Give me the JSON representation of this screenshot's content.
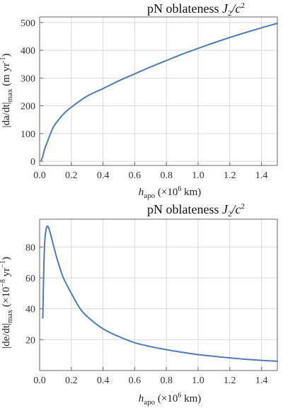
{
  "chart_data": [
    {
      "type": "line",
      "title": "pN oblateness J₂/c²",
      "title_parts": {
        "main": "pN oblateness",
        "J": "J",
        "J_sub": "2",
        "slash": "/",
        "c": "c",
        "c_sup": "2"
      },
      "xlabel": "h_apo (×10^6 km)",
      "xlabel_parts": {
        "sym": "h",
        "sub": "apo",
        "unit_open": "(×10",
        "unit_sup": "6",
        "unit_close": "km)"
      },
      "ylabel": "|da/dt|_max (m yr^-1)",
      "ylabel_parts": {
        "main": "|da/dt|",
        "sub": "max",
        "unit_open": "(m  yr",
        "unit_sup": "-1",
        "unit_close": ")"
      },
      "xlim": [
        0,
        1.5
      ],
      "ylim": [
        -15,
        520
      ],
      "xticks": [
        0.0,
        0.2,
        0.4,
        0.6,
        0.8,
        1.0,
        1.2,
        1.4
      ],
      "xtick_labels": [
        "0.0",
        "0.2",
        "0.4",
        "0.6",
        "0.8",
        "1.0",
        "1.2",
        "1.4"
      ],
      "yticks": [
        0,
        100,
        200,
        300,
        400,
        500
      ],
      "ytick_labels": [
        "0",
        "100",
        "200",
        "300",
        "400",
        "500"
      ],
      "grid": true,
      "series": [
        {
          "color": "#4f7bb5",
          "x": [
            0.01,
            0.02,
            0.03,
            0.05,
            0.08,
            0.1,
            0.15,
            0.2,
            0.3,
            0.4,
            0.5,
            0.6,
            0.7,
            0.8,
            0.9,
            1.0,
            1.1,
            1.2,
            1.3,
            1.4,
            1.5
          ],
          "y": [
            2,
            18,
            40,
            72,
            115,
            135,
            170,
            195,
            235,
            262,
            290,
            315,
            340,
            363,
            386,
            407,
            427,
            446,
            464,
            481,
            497
          ]
        }
      ]
    },
    {
      "type": "line",
      "title": "pN oblateness J₂/c²",
      "title_parts": {
        "main": "pN oblateness",
        "J": "J",
        "J_sub": "2",
        "slash": "/",
        "c": "c",
        "c_sup": "2"
      },
      "xlabel": "h_apo (×10^6 km)",
      "xlabel_parts": {
        "sym": "h",
        "sub": "apo",
        "unit_open": "(×10",
        "unit_sup": "6",
        "unit_close": "km)"
      },
      "ylabel": "|de/dt|_max (×10^-8 yr^-1)",
      "ylabel_parts": {
        "main": "|de/dt|",
        "sub": "max",
        "unit_open": "(×10",
        "unit_sup": "−8",
        "unit_mid": " yr",
        "unit_sup2": "−1",
        "unit_close": ")"
      },
      "xlim": [
        0,
        1.5
      ],
      "ylim": [
        0,
        98
      ],
      "xticks": [
        0.0,
        0.2,
        0.4,
        0.6,
        0.8,
        1.0,
        1.2,
        1.4
      ],
      "xtick_labels": [
        "0.0",
        "0.2",
        "0.4",
        "0.6",
        "0.8",
        "1.0",
        "1.2",
        "1.4"
      ],
      "yticks": [
        20,
        40,
        60,
        80
      ],
      "ytick_labels": [
        "20",
        "40",
        "60",
        "80"
      ],
      "grid": true,
      "series": [
        {
          "color": "#4f7bb5",
          "x": [
            0.02,
            0.025,
            0.03,
            0.035,
            0.04,
            0.045,
            0.05,
            0.055,
            0.06,
            0.07,
            0.08,
            0.1,
            0.12,
            0.15,
            0.2,
            0.25,
            0.3,
            0.4,
            0.5,
            0.6,
            0.7,
            0.8,
            0.9,
            1.0,
            1.1,
            1.2,
            1.3,
            1.4,
            1.5
          ],
          "y": [
            34,
            60,
            78,
            87,
            91,
            93,
            93.5,
            93,
            91.5,
            88,
            84,
            76,
            69,
            60,
            50,
            41,
            35,
            27,
            22,
            18,
            15.5,
            13.5,
            11.8,
            10.3,
            9.2,
            8.2,
            7.3,
            6.6,
            6
          ]
        }
      ]
    }
  ]
}
